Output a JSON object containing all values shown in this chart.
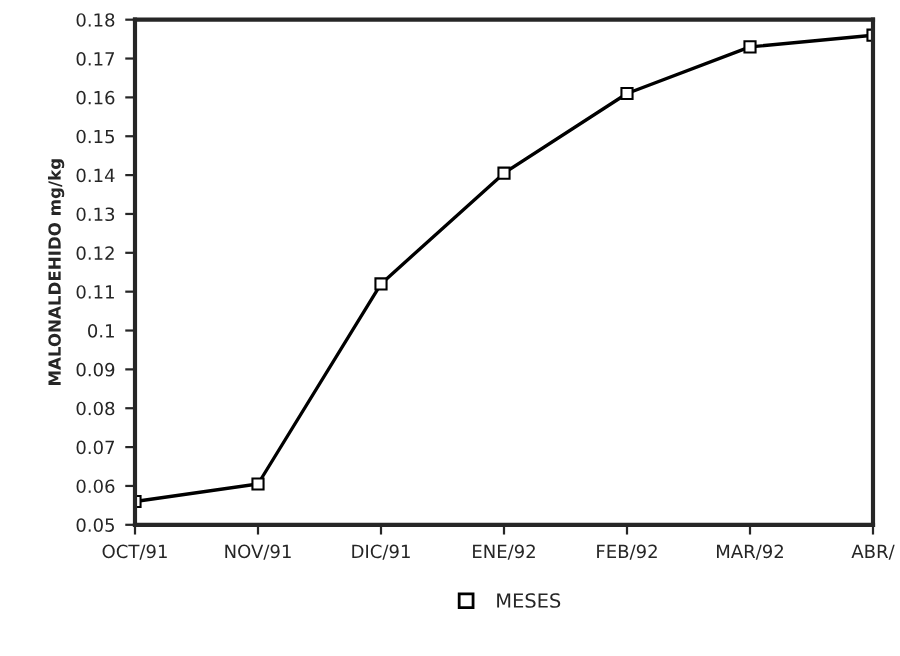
{
  "chart_data": {
    "type": "line",
    "ylabel": "MALONALDEHIDO mg/kg",
    "categories": [
      "OCT/91",
      "NOV/91",
      "DIC/91",
      "ENE/92",
      "FEB/92",
      "MAR/92",
      "ABR/"
    ],
    "series": [
      {
        "name": "MESES",
        "color": "#000000",
        "values": [
          0.056,
          0.0605,
          0.112,
          0.1405,
          0.161,
          0.173,
          0.176
        ]
      }
    ],
    "ylim": [
      0.05,
      0.18
    ],
    "yticks": [
      0.05,
      0.06,
      0.07,
      0.08,
      0.09,
      0.1,
      0.11,
      0.12,
      0.13,
      0.14,
      0.15,
      0.16,
      0.17,
      0.18
    ],
    "marker": "square",
    "line_style": "solid",
    "grid": false,
    "legend": "bottom"
  }
}
